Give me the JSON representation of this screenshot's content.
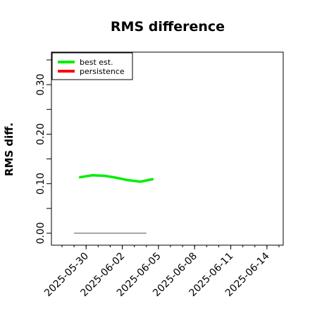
{
  "chart_data": {
    "type": "line",
    "title": "RMS difference",
    "xlabel": "",
    "ylabel": "RMS diff.",
    "x_ticks": [
      "2025-05-30",
      "2025-06-02",
      "2025-06-05",
      "2025-06-08",
      "2025-06-11",
      "2025-06-14"
    ],
    "y_ticks": [
      "0.00",
      "0.10",
      "0.20",
      "0.30"
    ],
    "y_tick_values": [
      0.0,
      0.1,
      0.2,
      0.3
    ],
    "y_minor_ticks": [
      0.05,
      0.15,
      0.25,
      0.35
    ],
    "ylim": [
      -0.01,
      0.36
    ],
    "xlim": [
      "2025-05-28",
      "2025-06-15"
    ],
    "series": [
      {
        "name": "best est.",
        "color": "#00ee00",
        "x": [
          "2025-05-29",
          "2025-05-30",
          "2025-05-31",
          "2025-06-01",
          "2025-06-02",
          "2025-06-03",
          "2025-06-04"
        ],
        "values": [
          0.113,
          0.117,
          0.116,
          0.112,
          0.107,
          0.104,
          0.109
        ]
      },
      {
        "name": "persistence",
        "color": "#ff0000",
        "x": [],
        "values": []
      }
    ],
    "reference_line": {
      "color": "#888888",
      "x": [
        "2025-05-29",
        "2025-06-04"
      ],
      "values": [
        0.0,
        0.0
      ]
    },
    "legend_position": "top-left"
  }
}
